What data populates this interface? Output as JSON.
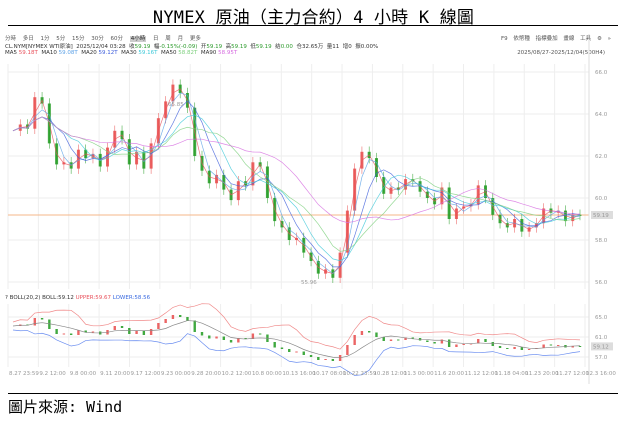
{
  "title": "NYMEX 原油（主力合約）4 小時 K 線圖",
  "source": "圖片來源: Wind",
  "toolbar": {
    "periods": [
      "分時",
      "多日",
      "1分",
      "5分",
      "15分",
      "30分",
      "60分",
      "4小時",
      "日",
      "周",
      "月",
      "更多"
    ],
    "active_period": "4小時",
    "right_tools": [
      "F9",
      "依幣種",
      "指標疊加",
      "畫線",
      "工具",
      "⚙",
      "»"
    ],
    "range_label": "2025/08/27-2025/12/04(500H4)"
  },
  "quote": {
    "symbol": "CL.NYM[NYMEX WTI原油]",
    "datetime": "2025/12/04 03:28",
    "close_label": "收",
    "close": "59.19",
    "change_label": "幅",
    "change": "-0.15%(-0.09)",
    "open_label": "开",
    "open": "59.19",
    "high_label": "高",
    "high": "59.19",
    "low_label": "低",
    "low": "59.19",
    "settle_label": "结",
    "settle": "0.00",
    "oi_label": "仓",
    "oi": "32.65万",
    "vol_label": "量",
    "vol": "11",
    "chg_label": "增",
    "chg": "0",
    "amp_label": "振",
    "amp": "0.00%"
  },
  "ma_legend": [
    {
      "label": "MA5",
      "value": "59.18T",
      "color": "#e8505b"
    },
    {
      "label": "MA10",
      "value": "59.08T",
      "color": "#5aa0e6"
    },
    {
      "label": "MA20",
      "value": "59.12T",
      "color": "#3b5bdb"
    },
    {
      "label": "MA30",
      "value": "59.16T",
      "color": "#3bc8d8"
    },
    {
      "label": "MA50",
      "value": "58.82T",
      "color": "#7ccf7c"
    },
    {
      "label": "MA90",
      "value": "58.95T",
      "color": "#d66be0"
    }
  ],
  "boll_legend": {
    "prefix": "?",
    "name": "BOLL(20,2)",
    "boll_label": "BOLL:",
    "boll": "59.12",
    "upper_label": "UPPER:",
    "upper": "59.67",
    "lower_label": "LOWER:",
    "lower": "58.56"
  },
  "colors": {
    "up": "#e84a4a",
    "down": "#1e9a1e",
    "grid": "#eeeeee",
    "price_line": "#f5b78a"
  },
  "chart_data": [
    {
      "type": "candlestick",
      "title": "NYMEX 原油（主力合約）4 小時 K 線圖",
      "y_ticks": [
        56.0,
        58.0,
        60.0,
        62.0,
        64.0,
        66.0
      ],
      "ylim": [
        55.8,
        66.2
      ],
      "current_price": 59.19,
      "annotations": [
        {
          "label": "65.85",
          "type": "max"
        },
        {
          "label": "55.96",
          "type": "min"
        }
      ],
      "x_tick_labels": [
        "8.27 23:59",
        "9.2 12:00",
        "9.8 00:00",
        "9.11 20:00",
        "9.17 12:00",
        "9.23 00:00",
        "9.28 20:00",
        "10.2 12:00",
        "10.8 00:00",
        "10.13 16:00",
        "10.17 08:00",
        "10.22 23:59",
        "10.28 12:00",
        "11.3 00:00",
        "11.6 20:00",
        "11.12 12:00",
        "11.18 04:00",
        "11.23 20:00",
        "11.27 12:00",
        "12.3 16:00"
      ],
      "close_path": [
        63.2,
        63.5,
        63.3,
        64.8,
        64.5,
        62.6,
        61.6,
        61.7,
        61.4,
        62.3,
        61.9,
        62.1,
        61.5,
        62.4,
        63.2,
        62.8,
        61.6,
        62.2,
        61.4,
        62.6,
        63.8,
        64.6,
        65.4,
        65.0,
        64.3,
        62.0,
        61.3,
        60.7,
        61.1,
        60.4,
        59.9,
        60.8,
        60.6,
        61.7,
        61.5,
        60.0,
        58.9,
        58.6,
        58.0,
        58.1,
        57.4,
        57.0,
        56.4,
        56.6,
        56.2,
        57.4,
        59.4,
        61.4,
        62.2,
        61.9,
        61.0,
        60.2,
        60.5,
        60.4,
        60.9,
        60.8,
        60.3,
        60.0,
        59.7,
        60.5,
        59.0,
        59.5,
        59.6,
        59.7,
        60.6,
        60.0,
        59.2,
        58.8,
        58.6,
        59.0,
        58.4,
        58.6,
        58.8,
        59.5,
        59.3,
        59.4,
        58.9,
        59.2,
        59.19
      ],
      "series": [
        {
          "name": "MA5",
          "last": 59.18
        },
        {
          "name": "MA10",
          "last": 59.08
        },
        {
          "name": "MA20",
          "last": 59.12
        },
        {
          "name": "MA30",
          "last": 59.16
        },
        {
          "name": "MA50",
          "last": 58.82
        },
        {
          "name": "MA90",
          "last": 58.95
        }
      ]
    },
    {
      "type": "line",
      "title": "BOLL(20,2)",
      "y_ticks": [
        57.0,
        61.0,
        65.0
      ],
      "current_label": "59.12",
      "series": [
        {
          "name": "BOLL",
          "last": 59.12
        },
        {
          "name": "UPPER",
          "last": 59.67
        },
        {
          "name": "LOWER",
          "last": 58.56
        }
      ]
    }
  ]
}
